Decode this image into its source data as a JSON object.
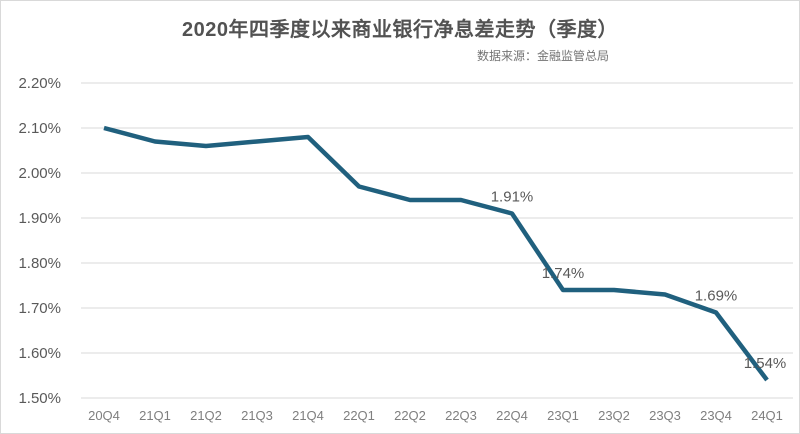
{
  "header": {
    "title": "2020年四季度以来商业银行净息差走势（季度）",
    "source": "数据来源：金融监管总局"
  },
  "colors": {
    "line": "#20607e",
    "grid": "#d9d9d9",
    "title_text": "#525252",
    "source_text": "#737373",
    "y_tick_text": "#595959",
    "x_tick_text": "#7f7f7f",
    "point_label_text": "#595959",
    "border": "#d9d9d9",
    "background": "#ffffff"
  },
  "chart_data": {
    "type": "line",
    "title": "2020年四季度以来商业银行净息差走势（季度）",
    "source": "数据来源：金融监管总局",
    "categories": [
      "20Q4",
      "21Q1",
      "21Q2",
      "21Q3",
      "21Q4",
      "22Q1",
      "22Q2",
      "22Q3",
      "22Q4",
      "23Q1",
      "23Q2",
      "23Q3",
      "23Q4",
      "24Q1"
    ],
    "values": [
      2.1,
      2.07,
      2.06,
      2.07,
      2.08,
      1.97,
      1.94,
      1.94,
      1.91,
      1.74,
      1.74,
      1.73,
      1.69,
      1.54
    ],
    "point_labels": [
      null,
      null,
      null,
      null,
      null,
      null,
      null,
      null,
      "1.91%",
      "1.74%",
      null,
      null,
      "1.69%",
      "1.54%"
    ],
    "unit": "%",
    "xlabel": "",
    "ylabel": "",
    "ylim": [
      1.5,
      2.2
    ],
    "y_tick_interval": 0.1,
    "y_ticks": [
      "1.50%",
      "1.60%",
      "1.70%",
      "1.80%",
      "1.90%",
      "2.00%",
      "2.10%",
      "2.20%"
    ],
    "y_tick_values": [
      1.5,
      1.6,
      1.7,
      1.8,
      1.9,
      2.0,
      2.1,
      2.2
    ],
    "grid": true,
    "legend_position": "none",
    "line_width": 4.5
  }
}
